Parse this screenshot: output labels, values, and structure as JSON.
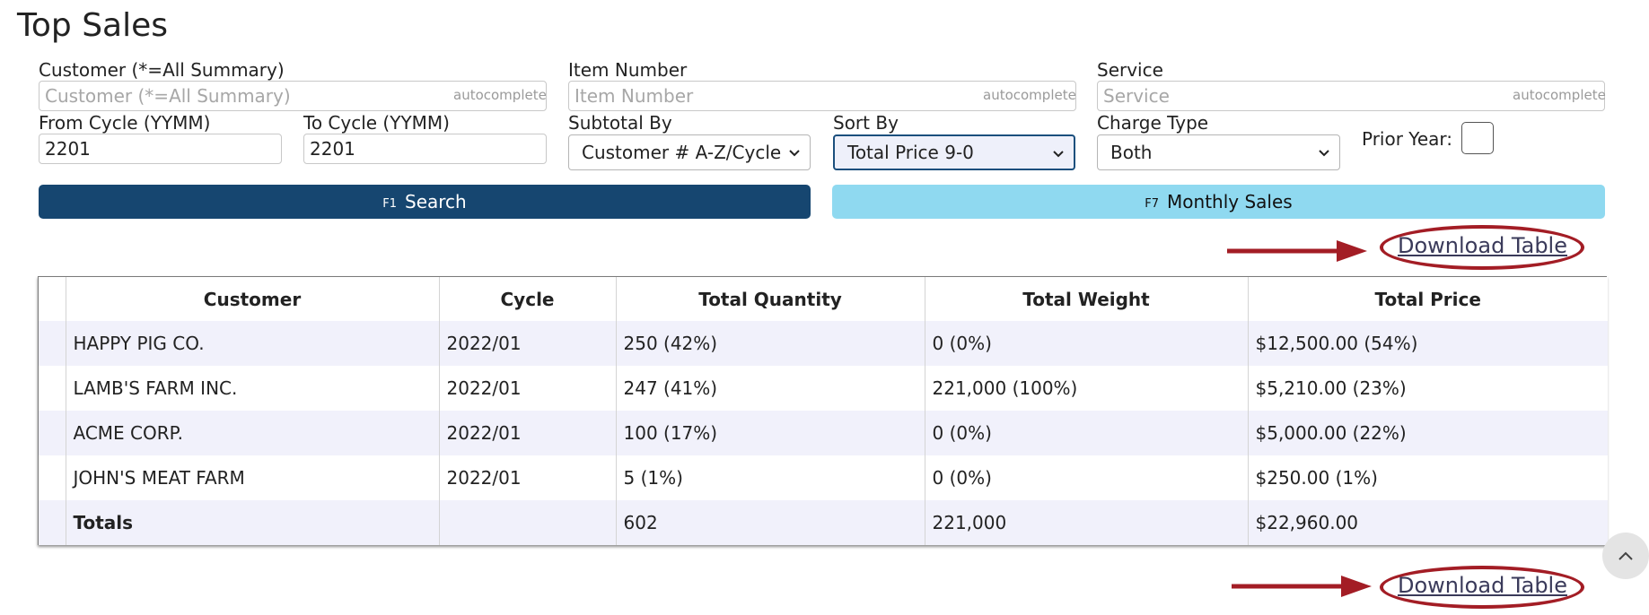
{
  "page": {
    "title": "Top Sales"
  },
  "filters": {
    "customer": {
      "label": "Customer (*=All Summary)",
      "placeholder": "Customer (*=All Summary)",
      "value": "",
      "hint": "autocomplete"
    },
    "item_number": {
      "label": "Item Number",
      "placeholder": "Item Number",
      "value": "",
      "hint": "autocomplete"
    },
    "service": {
      "label": "Service",
      "placeholder": "Service",
      "value": "",
      "hint": "autocomplete"
    },
    "from_cycle": {
      "label": "From Cycle (YYMM)",
      "value": "2201"
    },
    "to_cycle": {
      "label": "To Cycle (YYMM)",
      "value": "2201"
    },
    "subtotal_by": {
      "label": "Subtotal By",
      "selected": "Customer # A-Z/Cycle"
    },
    "sort_by": {
      "label": "Sort By",
      "selected": "Total Price 9-0"
    },
    "charge_type": {
      "label": "Charge Type",
      "selected": "Both"
    },
    "prior_year": {
      "label": "Prior Year:",
      "checked": false
    }
  },
  "actions": {
    "search": {
      "key": "F1",
      "label": "Search"
    },
    "monthly_sales": {
      "key": "F7",
      "label": "Monthly Sales"
    },
    "download_top": "Download Table",
    "download_bottom": "Download Table"
  },
  "table": {
    "headers": [
      "",
      "Customer",
      "Cycle",
      "Total Quantity",
      "Total Weight",
      "Total Price"
    ],
    "rows": [
      [
        "",
        "HAPPY PIG CO.",
        "2022/01",
        "250 (42%)",
        "0 (0%)",
        "$12,500.00 (54%)"
      ],
      [
        "",
        "LAMB'S FARM INC.",
        "2022/01",
        "247 (41%)",
        "221,000 (100%)",
        "$5,210.00 (23%)"
      ],
      [
        "",
        "ACME CORP.",
        "2022/01",
        "100 (17%)",
        "0 (0%)",
        "$5,000.00 (22%)"
      ],
      [
        "",
        "JOHN'S MEAT FARM",
        "2022/01",
        "5 (1%)",
        "0 (0%)",
        "$250.00 (1%)"
      ]
    ],
    "totals": [
      "",
      "Totals",
      "",
      "602",
      "221,000",
      "$22,960.00"
    ]
  },
  "colors": {
    "search_button": "#164670",
    "monthly_button": "#8fd9f0",
    "annotation_red": "#a31d25",
    "row_stripe": "#f1f1fb"
  },
  "icons": {
    "select_chevron": "chevron-down-icon",
    "scroll_top": "chevron-up-icon",
    "annotation": "red-arrow-icon"
  }
}
